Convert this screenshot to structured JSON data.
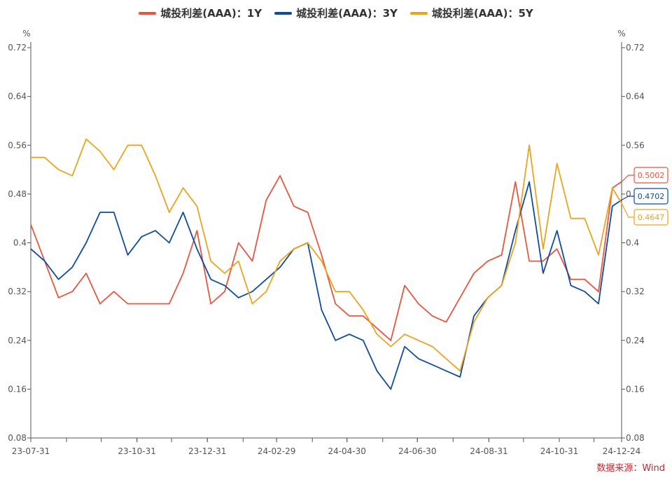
{
  "legend": [
    {
      "label": "城投利差(AAA)：1Y",
      "color": "#e8563f"
    },
    {
      "label": "城投利差(AAA)：3Y",
      "color": "#0f4c9e"
    },
    {
      "label": "城投利差(AAA)：5Y",
      "color": "#eba420"
    }
  ],
  "source": "数据来源：Wind",
  "chart_data": {
    "type": "line",
    "title": "",
    "ylabel_left": "%",
    "ylabel_right": "%",
    "ylim": [
      0.08,
      0.72
    ],
    "yticks": [
      "0.08",
      "0.16",
      "0.24",
      "0.32",
      "0.4",
      "0.48",
      "0.56",
      "0.64",
      "0.72"
    ],
    "xlim": [
      "2023-07-31",
      "2024-12-24"
    ],
    "xtick_labels": [
      "23-07-31",
      "23-10-31",
      "23-12-31",
      "24-02-29",
      "24-04-30",
      "24-06-30",
      "24-08-31",
      "24-10-31",
      "24-12-24"
    ],
    "xtick_dates": [
      "2023-07-31",
      "2023-10-31",
      "2023-12-31",
      "2024-02-29",
      "2024-04-30",
      "2024-06-30",
      "2024-08-31",
      "2024-10-31",
      "2024-12-24"
    ],
    "grid": false,
    "legend_position": "top-center",
    "x": [
      "2023-07-31",
      "2023-08-12",
      "2023-08-24",
      "2023-09-05",
      "2023-09-17",
      "2023-09-29",
      "2023-10-11",
      "2023-10-23",
      "2023-11-04",
      "2023-11-16",
      "2023-11-28",
      "2023-12-10",
      "2023-12-22",
      "2024-01-03",
      "2024-01-15",
      "2024-01-27",
      "2024-02-08",
      "2024-02-20",
      "2024-03-03",
      "2024-03-15",
      "2024-03-27",
      "2024-04-08",
      "2024-04-20",
      "2024-05-02",
      "2024-05-14",
      "2024-05-26",
      "2024-06-07",
      "2024-06-19",
      "2024-07-01",
      "2024-07-13",
      "2024-07-25",
      "2024-08-06",
      "2024-08-18",
      "2024-08-30",
      "2024-09-11",
      "2024-09-23",
      "2024-10-05",
      "2024-10-17",
      "2024-10-29",
      "2024-11-10",
      "2024-11-22",
      "2024-12-04",
      "2024-12-16",
      "2024-12-24"
    ],
    "series": [
      {
        "name": "城投利差(AAA)：1Y",
        "color": "#e8563f",
        "last_label": "0.5002",
        "values": [
          0.43,
          0.37,
          0.31,
          0.32,
          0.35,
          0.3,
          0.32,
          0.3,
          0.3,
          0.3,
          0.3,
          0.35,
          0.42,
          0.3,
          0.32,
          0.4,
          0.37,
          0.47,
          0.51,
          0.46,
          0.45,
          0.38,
          0.3,
          0.28,
          0.28,
          0.26,
          0.24,
          0.33,
          0.3,
          0.28,
          0.27,
          0.31,
          0.35,
          0.37,
          0.38,
          0.5,
          0.37,
          0.37,
          0.39,
          0.34,
          0.34,
          0.32,
          0.49,
          0.5002
        ]
      },
      {
        "name": "城投利差(AAA)：3Y",
        "color": "#0f4c9e",
        "last_label": "0.4702",
        "values": [
          0.39,
          0.37,
          0.34,
          0.36,
          0.4,
          0.45,
          0.45,
          0.38,
          0.41,
          0.42,
          0.4,
          0.45,
          0.39,
          0.34,
          0.33,
          0.31,
          0.32,
          0.34,
          0.36,
          0.39,
          0.4,
          0.29,
          0.24,
          0.25,
          0.24,
          0.19,
          0.16,
          0.23,
          0.21,
          0.2,
          0.19,
          0.18,
          0.28,
          0.31,
          0.33,
          0.42,
          0.5,
          0.35,
          0.42,
          0.33,
          0.32,
          0.3,
          0.46,
          0.4702
        ]
      },
      {
        "name": "城投利差(AAA)：5Y",
        "color": "#eba420",
        "last_label": "0.4647",
        "values": [
          0.54,
          0.54,
          0.52,
          0.51,
          0.57,
          0.55,
          0.52,
          0.56,
          0.56,
          0.51,
          0.45,
          0.49,
          0.46,
          0.37,
          0.35,
          0.37,
          0.3,
          0.32,
          0.37,
          0.39,
          0.4,
          0.37,
          0.32,
          0.32,
          0.29,
          0.25,
          0.23,
          0.25,
          0.24,
          0.23,
          0.21,
          0.19,
          0.27,
          0.31,
          0.33,
          0.4,
          0.56,
          0.39,
          0.53,
          0.44,
          0.44,
          0.38,
          0.49,
          0.4647
        ]
      }
    ]
  }
}
